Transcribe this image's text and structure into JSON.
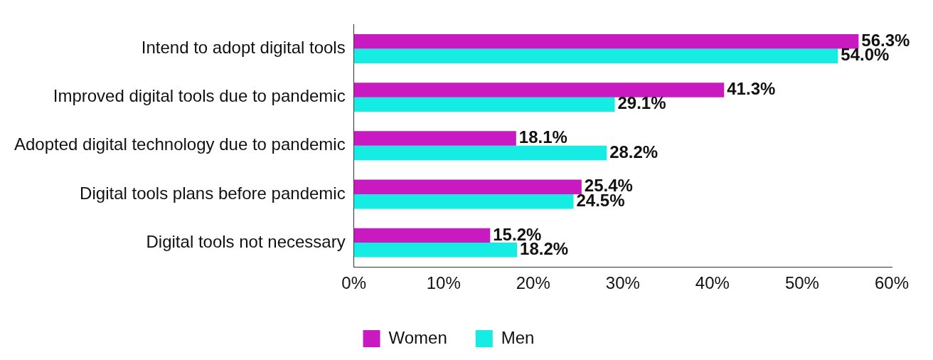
{
  "chart_data": {
    "type": "bar",
    "orientation": "horizontal",
    "categories": [
      "Intend to adopt digital tools",
      "Improved digital tools due to pandemic",
      "Adopted digital technology due to pandemic",
      "Digital tools plans before pandemic",
      "Digital tools not necessary"
    ],
    "series": [
      {
        "name": "Women",
        "color": "#c81ac0",
        "values": [
          56.3,
          41.3,
          18.1,
          25.4,
          15.2
        ],
        "value_labels": [
          "56.3%",
          "41.3%",
          "18.1%",
          "25.4%",
          "15.2%"
        ]
      },
      {
        "name": "Men",
        "color": "#14ece4",
        "values": [
          54.0,
          29.1,
          28.2,
          24.5,
          18.2
        ],
        "value_labels": [
          "54.0%",
          "29.1%",
          "28.2%",
          "24.5%",
          "18.2%"
        ]
      }
    ],
    "xlim": [
      0,
      60
    ],
    "xticks": [
      {
        "value": 0,
        "label": "0%"
      },
      {
        "value": 10,
        "label": "10%"
      },
      {
        "value": 20,
        "label": "20%"
      },
      {
        "value": 30,
        "label": "30%"
      },
      {
        "value": 40,
        "label": "40%"
      },
      {
        "value": 50,
        "label": "50%"
      },
      {
        "value": 60,
        "label": "60%"
      }
    ],
    "grid": false,
    "legend": "bottom"
  }
}
